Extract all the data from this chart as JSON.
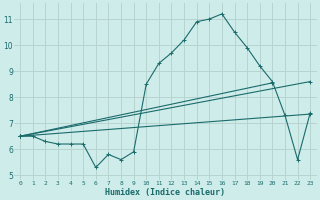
{
  "xlabel": "Humidex (Indice chaleur)",
  "bg_color": "#ceecea",
  "grid_color": "#b8d4d0",
  "line_color": "#1a6b6b",
  "xlim": [
    -0.5,
    23.5
  ],
  "ylim": [
    4.8,
    11.6
  ],
  "xticks": [
    0,
    1,
    2,
    3,
    4,
    5,
    6,
    7,
    8,
    9,
    10,
    11,
    12,
    13,
    14,
    15,
    16,
    17,
    18,
    19,
    20,
    21,
    22,
    23
  ],
  "yticks": [
    5,
    6,
    7,
    8,
    9,
    10,
    11
  ],
  "series1_x": [
    0,
    1,
    2,
    3,
    4,
    5,
    6,
    7,
    8,
    9,
    10,
    11,
    12,
    13,
    14,
    15,
    16,
    17,
    18,
    19,
    20,
    21,
    22,
    23
  ],
  "series1_y": [
    6.5,
    6.5,
    6.3,
    6.2,
    6.2,
    6.2,
    5.3,
    5.8,
    5.6,
    5.9,
    8.5,
    9.3,
    9.7,
    10.2,
    10.9,
    11.0,
    11.2,
    10.5,
    9.9,
    9.2,
    8.6,
    7.3,
    5.6,
    7.4
  ],
  "series2_x": [
    0,
    23
  ],
  "series2_y": [
    6.5,
    8.6
  ],
  "series3_x": [
    0,
    20
  ],
  "series3_y": [
    6.5,
    8.55
  ],
  "series4_x": [
    0,
    23
  ],
  "series4_y": [
    6.5,
    7.35
  ]
}
